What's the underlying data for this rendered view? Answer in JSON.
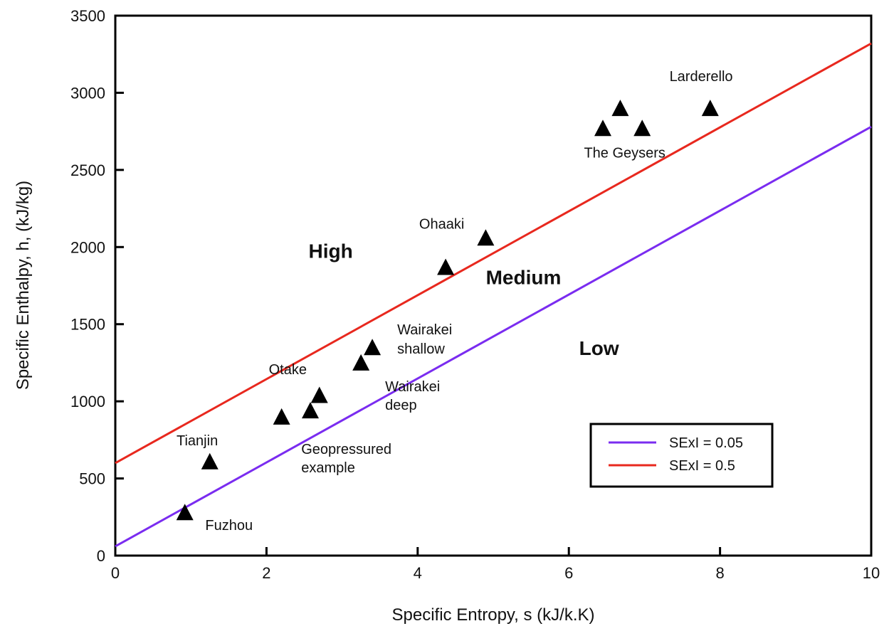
{
  "chart_data": {
    "type": "scatter",
    "xlabel": "Specific Entropy, s (kJ/k.K)",
    "ylabel": "Specific Enthalpy, h, (kJ/kg)",
    "xlim": [
      0,
      10
    ],
    "ylim": [
      0,
      3500
    ],
    "x_ticks": [
      "0",
      "2",
      "4",
      "6",
      "8",
      "10"
    ],
    "y_ticks": [
      "0",
      "500",
      "1000",
      "1500",
      "2000",
      "2500",
      "3000",
      "3500"
    ],
    "grid": false,
    "legend_position": "lower-right",
    "lines": [
      {
        "name": "SExI = 0.05",
        "color": "#7a2cf0",
        "x": [
          0,
          10
        ],
        "y": [
          60,
          2780
        ]
      },
      {
        "name": "SExI = 0.5",
        "color": "#e8281e",
        "x": [
          0,
          10
        ],
        "y": [
          600,
          3320
        ]
      }
    ],
    "points": [
      {
        "x": 0.92,
        "y": 280
      },
      {
        "x": 1.25,
        "y": 610
      },
      {
        "x": 2.2,
        "y": 900
      },
      {
        "x": 2.58,
        "y": 940
      },
      {
        "x": 2.7,
        "y": 1040
      },
      {
        "x": 3.25,
        "y": 1250
      },
      {
        "x": 3.4,
        "y": 1350
      },
      {
        "x": 4.37,
        "y": 1870
      },
      {
        "x": 4.9,
        "y": 2060
      },
      {
        "x": 6.45,
        "y": 2770
      },
      {
        "x": 6.68,
        "y": 2900
      },
      {
        "x": 6.97,
        "y": 2770
      },
      {
        "x": 7.87,
        "y": 2900
      }
    ],
    "point_marker": "triangle",
    "annotations": [
      {
        "text": "Larderello",
        "x": 7.75,
        "y": 3075,
        "anchor": "middle"
      },
      {
        "text": "The Geysers",
        "x": 6.2,
        "y": 2580,
        "anchor": "start"
      },
      {
        "text": "Ohaaki",
        "x": 4.02,
        "y": 2120,
        "anchor": "start"
      },
      {
        "text": "Wairakei",
        "x": 3.73,
        "y": 1435,
        "anchor": "start"
      },
      {
        "text": "shallow",
        "x": 3.73,
        "y": 1310,
        "anchor": "start"
      },
      {
        "text": "Wairakei",
        "x": 3.57,
        "y": 1065,
        "anchor": "start"
      },
      {
        "text": "deep",
        "x": 3.57,
        "y": 945,
        "anchor": "start"
      },
      {
        "text": "Otake",
        "x": 2.03,
        "y": 1175,
        "anchor": "start"
      },
      {
        "text": "Tianjin",
        "x": 0.81,
        "y": 715,
        "anchor": "start"
      },
      {
        "text": "Geopressured",
        "x": 2.46,
        "y": 660,
        "anchor": "start"
      },
      {
        "text": "example",
        "x": 2.46,
        "y": 540,
        "anchor": "start"
      },
      {
        "text": "Fuzhou",
        "x": 1.19,
        "y": 165,
        "anchor": "start"
      }
    ],
    "regions": [
      {
        "text": "High",
        "x": 2.85,
        "y": 1930
      },
      {
        "text": "Medium",
        "x": 5.4,
        "y": 1760
      },
      {
        "text": "Low",
        "x": 6.4,
        "y": 1300
      }
    ]
  }
}
